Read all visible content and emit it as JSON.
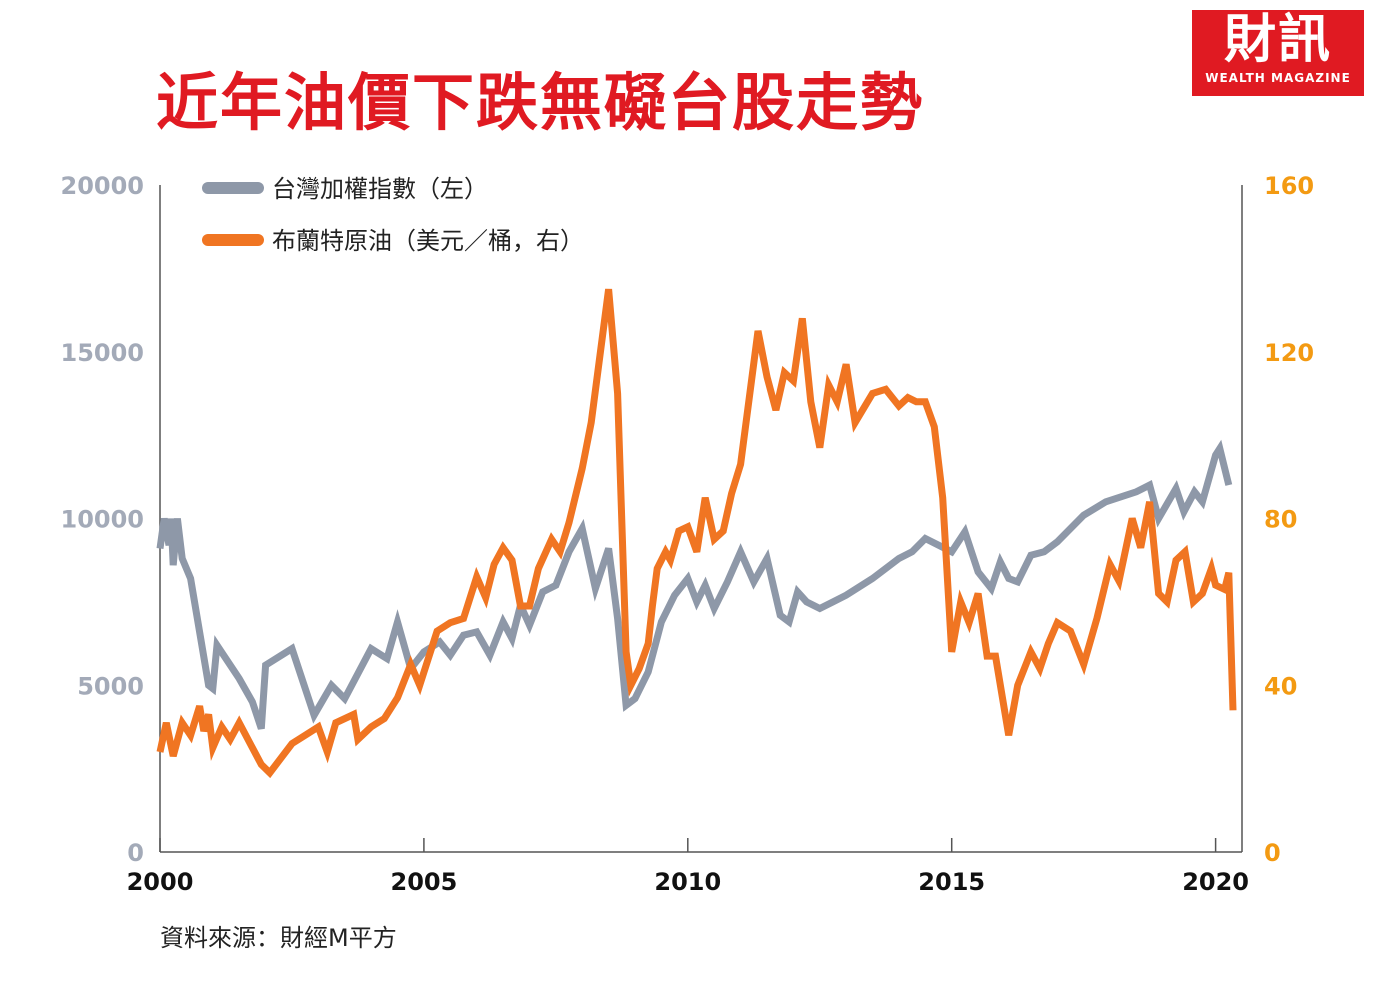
{
  "title": "近年油價下跌無礙台股走勢",
  "logo": {
    "main": "財訊",
    "sub": "WEALTH MAGAZINE"
  },
  "source": "資料來源：財經M平方",
  "chart_data": {
    "type": "line",
    "x_ticks": [
      "2000",
      "2005",
      "2010",
      "2015",
      "2020"
    ],
    "xlim": [
      2000,
      2020.5
    ],
    "y_left": {
      "ticks": [
        "0",
        "5000",
        "10000",
        "15000",
        "20000"
      ],
      "range": [
        0,
        20000
      ],
      "color": "#a3aab8"
    },
    "y_right": {
      "ticks": [
        "0",
        "40",
        "80",
        "120",
        "160"
      ],
      "range": [
        0,
        160
      ],
      "color": "#f39a12"
    },
    "legend": [
      {
        "label": "台灣加權指數（左）",
        "color": "#8e98a8"
      },
      {
        "label": "布蘭特原油（美元／桶，右）",
        "color": "#f07522"
      }
    ],
    "series": [
      {
        "name": "台灣加權指數（左）",
        "axis": "left",
        "color": "#8e98a8",
        "points": [
          [
            2000.0,
            9100
          ],
          [
            2000.08,
            10000
          ],
          [
            2000.17,
            9200
          ],
          [
            2000.21,
            10000
          ],
          [
            2000.25,
            8600
          ],
          [
            2000.33,
            10000
          ],
          [
            2000.42,
            8800
          ],
          [
            2000.58,
            8200
          ],
          [
            2000.92,
            5000
          ],
          [
            2001.0,
            4900
          ],
          [
            2001.08,
            6200
          ],
          [
            2001.5,
            5200
          ],
          [
            2001.75,
            4500
          ],
          [
            2001.92,
            3700
          ],
          [
            2002.0,
            5600
          ],
          [
            2002.5,
            6100
          ],
          [
            2002.92,
            4100
          ],
          [
            2003.25,
            5000
          ],
          [
            2003.5,
            4600
          ],
          [
            2004.0,
            6100
          ],
          [
            2004.3,
            5800
          ],
          [
            2004.5,
            6900
          ],
          [
            2004.75,
            5500
          ],
          [
            2005.0,
            6000
          ],
          [
            2005.3,
            6300
          ],
          [
            2005.5,
            5900
          ],
          [
            2005.75,
            6500
          ],
          [
            2006.0,
            6600
          ],
          [
            2006.25,
            5900
          ],
          [
            2006.5,
            6900
          ],
          [
            2006.67,
            6400
          ],
          [
            2006.83,
            7400
          ],
          [
            2007.0,
            6800
          ],
          [
            2007.25,
            7800
          ],
          [
            2007.5,
            8000
          ],
          [
            2007.75,
            9000
          ],
          [
            2008.0,
            9700
          ],
          [
            2008.25,
            7900
          ],
          [
            2008.5,
            9100
          ],
          [
            2008.67,
            7000
          ],
          [
            2008.83,
            4400
          ],
          [
            2009.0,
            4600
          ],
          [
            2009.25,
            5400
          ],
          [
            2009.5,
            6900
          ],
          [
            2009.75,
            7700
          ],
          [
            2010.0,
            8200
          ],
          [
            2010.17,
            7500
          ],
          [
            2010.33,
            8000
          ],
          [
            2010.5,
            7300
          ],
          [
            2010.75,
            8100
          ],
          [
            2011.0,
            9000
          ],
          [
            2011.25,
            8100
          ],
          [
            2011.5,
            8800
          ],
          [
            2011.75,
            7100
          ],
          [
            2011.92,
            6900
          ],
          [
            2012.08,
            7800
          ],
          [
            2012.25,
            7500
          ],
          [
            2012.5,
            7300
          ],
          [
            2012.75,
            7500
          ],
          [
            2013.0,
            7700
          ],
          [
            2013.5,
            8200
          ],
          [
            2014.0,
            8800
          ],
          [
            2014.25,
            9000
          ],
          [
            2014.5,
            9400
          ],
          [
            2015.0,
            9000
          ],
          [
            2015.25,
            9600
          ],
          [
            2015.5,
            8400
          ],
          [
            2015.75,
            7900
          ],
          [
            2015.92,
            8700
          ],
          [
            2016.08,
            8200
          ],
          [
            2016.25,
            8100
          ],
          [
            2016.5,
            8900
          ],
          [
            2016.75,
            9000
          ],
          [
            2017.0,
            9300
          ],
          [
            2017.5,
            10100
          ],
          [
            2017.92,
            10500
          ],
          [
            2018.5,
            10800
          ],
          [
            2018.75,
            11000
          ],
          [
            2018.92,
            10000
          ],
          [
            2019.25,
            10900
          ],
          [
            2019.4,
            10200
          ],
          [
            2019.6,
            10800
          ],
          [
            2019.75,
            10500
          ],
          [
            2020.0,
            11900
          ],
          [
            2020.08,
            12100
          ],
          [
            2020.25,
            11000
          ]
        ]
      },
      {
        "name": "布蘭特原油（美元／桶，右）",
        "axis": "right",
        "color": "#f07522",
        "points": [
          [
            2000.0,
            24
          ],
          [
            2000.12,
            31
          ],
          [
            2000.25,
            23
          ],
          [
            2000.42,
            31
          ],
          [
            2000.58,
            28
          ],
          [
            2000.75,
            35
          ],
          [
            2000.83,
            29
          ],
          [
            2000.92,
            33
          ],
          [
            2001.0,
            25
          ],
          [
            2001.17,
            30
          ],
          [
            2001.33,
            27
          ],
          [
            2001.5,
            31
          ],
          [
            2001.75,
            25
          ],
          [
            2001.92,
            21
          ],
          [
            2002.08,
            19
          ],
          [
            2002.5,
            26
          ],
          [
            2002.75,
            28
          ],
          [
            2003.0,
            30
          ],
          [
            2003.17,
            24
          ],
          [
            2003.33,
            31
          ],
          [
            2003.67,
            33
          ],
          [
            2003.75,
            27
          ],
          [
            2004.0,
            30
          ],
          [
            2004.25,
            32
          ],
          [
            2004.5,
            37
          ],
          [
            2004.75,
            45
          ],
          [
            2004.92,
            40
          ],
          [
            2005.25,
            53
          ],
          [
            2005.5,
            55
          ],
          [
            2005.75,
            56
          ],
          [
            2006.0,
            66
          ],
          [
            2006.17,
            61
          ],
          [
            2006.33,
            69
          ],
          [
            2006.5,
            73
          ],
          [
            2006.67,
            70
          ],
          [
            2006.83,
            59
          ],
          [
            2007.0,
            59
          ],
          [
            2007.17,
            68
          ],
          [
            2007.42,
            75
          ],
          [
            2007.58,
            72
          ],
          [
            2007.75,
            79
          ],
          [
            2008.0,
            92
          ],
          [
            2008.17,
            103
          ],
          [
            2008.5,
            135
          ],
          [
            2008.67,
            110
          ],
          [
            2008.83,
            48
          ],
          [
            2008.92,
            40
          ],
          [
            2009.08,
            44
          ],
          [
            2009.25,
            50
          ],
          [
            2009.33,
            59
          ],
          [
            2009.42,
            68
          ],
          [
            2009.58,
            72
          ],
          [
            2009.67,
            70
          ],
          [
            2009.83,
            77
          ],
          [
            2010.0,
            78
          ],
          [
            2010.17,
            72
          ],
          [
            2010.33,
            85
          ],
          [
            2010.5,
            75
          ],
          [
            2010.67,
            77
          ],
          [
            2010.83,
            86
          ],
          [
            2011.0,
            93
          ],
          [
            2011.33,
            125
          ],
          [
            2011.5,
            114
          ],
          [
            2011.67,
            106
          ],
          [
            2011.83,
            115
          ],
          [
            2012.0,
            113
          ],
          [
            2012.17,
            128
          ],
          [
            2012.33,
            108
          ],
          [
            2012.5,
            97
          ],
          [
            2012.67,
            112
          ],
          [
            2012.83,
            108
          ],
          [
            2013.0,
            117
          ],
          [
            2013.17,
            103
          ],
          [
            2013.5,
            110
          ],
          [
            2013.75,
            111
          ],
          [
            2014.0,
            107
          ],
          [
            2014.17,
            109
          ],
          [
            2014.33,
            108
          ],
          [
            2014.5,
            108
          ],
          [
            2014.67,
            102
          ],
          [
            2014.83,
            85
          ],
          [
            2015.0,
            48
          ],
          [
            2015.17,
            60
          ],
          [
            2015.33,
            55
          ],
          [
            2015.5,
            62
          ],
          [
            2015.67,
            47
          ],
          [
            2015.83,
            47
          ],
          [
            2016.08,
            28
          ],
          [
            2016.25,
            40
          ],
          [
            2016.5,
            48
          ],
          [
            2016.67,
            44
          ],
          [
            2016.83,
            50
          ],
          [
            2017.0,
            55
          ],
          [
            2017.25,
            53
          ],
          [
            2017.5,
            45
          ],
          [
            2017.75,
            56
          ],
          [
            2018.0,
            69
          ],
          [
            2018.17,
            65
          ],
          [
            2018.42,
            80
          ],
          [
            2018.58,
            73
          ],
          [
            2018.75,
            84
          ],
          [
            2018.92,
            62
          ],
          [
            2019.08,
            60
          ],
          [
            2019.25,
            70
          ],
          [
            2019.42,
            72
          ],
          [
            2019.58,
            60
          ],
          [
            2019.75,
            62
          ],
          [
            2019.92,
            68
          ],
          [
            2020.0,
            64
          ],
          [
            2020.17,
            63
          ],
          [
            2020.25,
            67
          ],
          [
            2020.33,
            34
          ]
        ]
      }
    ]
  }
}
